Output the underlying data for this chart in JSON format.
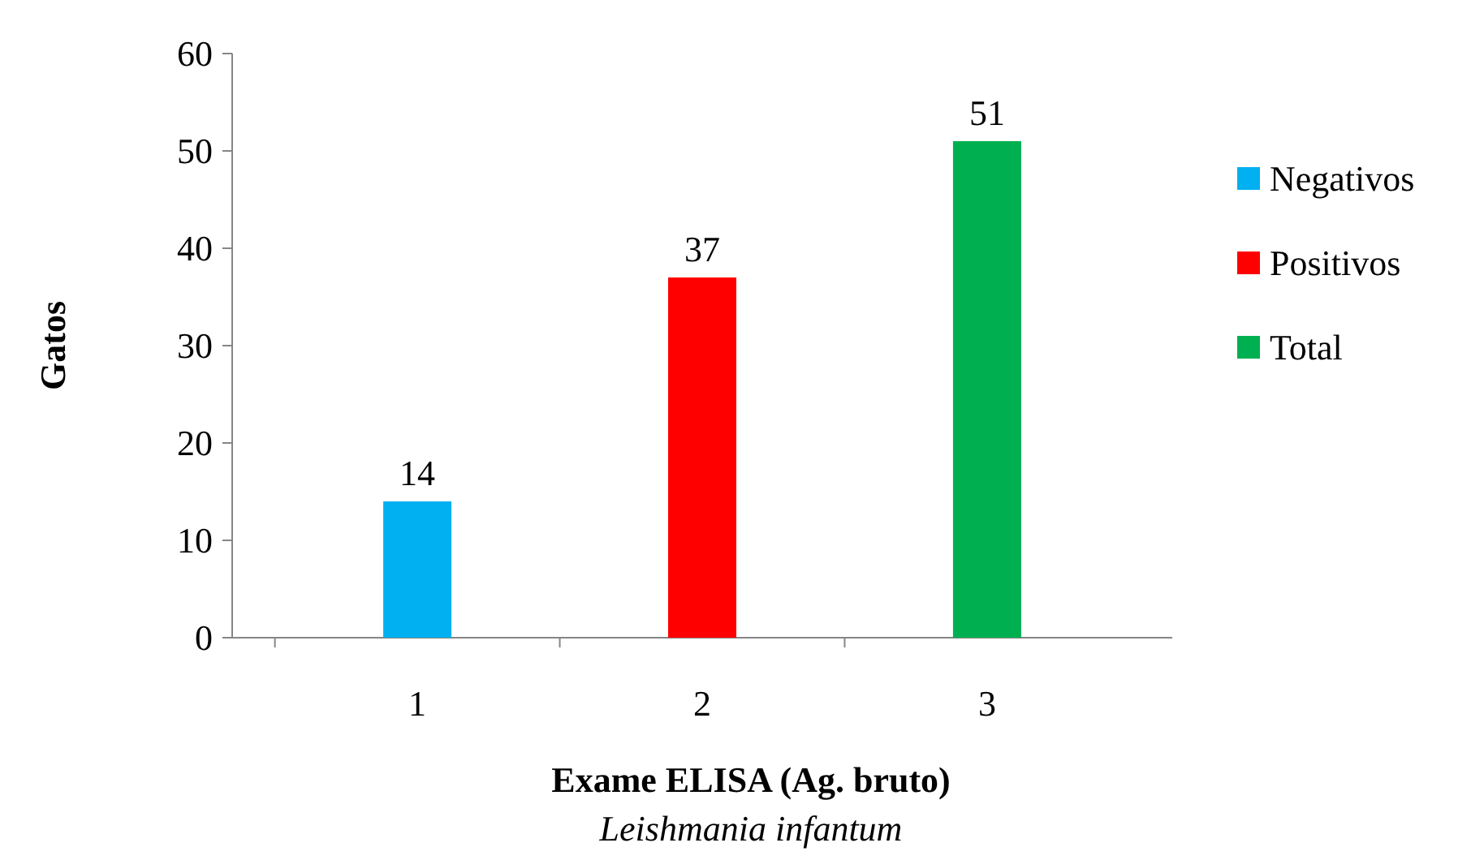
{
  "chart_data": {
    "type": "bar",
    "categories": [
      "1",
      "2",
      "3"
    ],
    "series": [
      {
        "name": "Negativos",
        "color": "#00b0f0",
        "values": [
          14,
          null,
          null
        ]
      },
      {
        "name": "Positivos",
        "color": "#ff0000",
        "values": [
          null,
          37,
          null
        ]
      },
      {
        "name": "Total",
        "color": "#00b050",
        "values": [
          null,
          null,
          51
        ]
      }
    ],
    "ylim": [
      0,
      60
    ],
    "yticks": [
      0,
      10,
      20,
      30,
      40,
      50,
      60
    ],
    "ylabel": "Gatos",
    "xlabel": "Exame ELISA (Ag. bruto)",
    "annotations": [
      "Leishmania infantum"
    ],
    "data_labels": true,
    "legend": "right",
    "grid": false
  }
}
